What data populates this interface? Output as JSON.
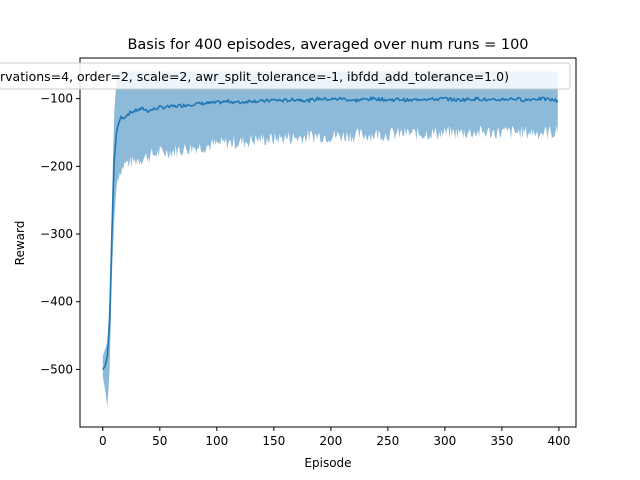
{
  "chart_data": {
    "type": "line",
    "title": "Basis for 400 episodes, averaged over num runs = 100",
    "xlabel": "Episode",
    "ylabel": "Reward",
    "xlim": [
      -20,
      415
    ],
    "ylim": [
      -585,
      -40
    ],
    "xticks": [
      0,
      50,
      100,
      150,
      200,
      250,
      300,
      350,
      400
    ],
    "yticks": [
      -500,
      -400,
      -300,
      -200,
      -100
    ],
    "grid": false,
    "legend": {
      "placement": "top",
      "text": "rvations=4, order=2, scale=2, awr_split_tolerance=-1, ibfdd_add_tolerance=1.0)"
    },
    "colors": {
      "line": "#1f77b4",
      "band": "#8ebad9"
    },
    "series": [
      {
        "x": [
          0,
          2,
          4,
          6,
          8,
          10,
          12,
          14,
          16,
          18,
          20,
          25,
          30,
          35,
          40,
          50,
          60,
          70,
          80,
          90,
          100,
          110,
          120,
          130,
          140,
          150,
          160,
          170,
          180,
          190,
          200,
          210,
          220,
          230,
          240,
          250,
          260,
          270,
          280,
          290,
          300,
          310,
          320,
          330,
          340,
          350,
          360,
          370,
          380,
          390,
          399
        ],
        "mean": [
          -500,
          -495,
          -480,
          -430,
          -300,
          -190,
          -150,
          -135,
          -128,
          -130,
          -125,
          -120,
          -117,
          -115,
          -118,
          -113,
          -112,
          -110,
          -108,
          -107,
          -106,
          -104,
          -106,
          -103,
          -104,
          -102,
          -103,
          -101,
          -103,
          -100,
          -101,
          -100,
          -103,
          -101,
          -100,
          -102,
          -101,
          -103,
          -100,
          -101,
          -100,
          -102,
          -101,
          -100,
          -103,
          -101,
          -100,
          -102,
          -100,
          -101,
          -103
        ],
        "upper": [
          -480,
          -470,
          -460,
          -390,
          -250,
          -120,
          -75,
          -60,
          -60,
          -60,
          -60,
          -60,
          -60,
          -60,
          -60,
          -60,
          -60,
          -60,
          -60,
          -60,
          -60,
          -60,
          -60,
          -60,
          -60,
          -60,
          -60,
          -60,
          -60,
          -60,
          -60,
          -60,
          -60,
          -60,
          -60,
          -60,
          -60,
          -60,
          -60,
          -60,
          -60,
          -60,
          -60,
          -60,
          -60,
          -60,
          -60,
          -60,
          -60,
          -60,
          -60
        ],
        "lower": [
          -510,
          -530,
          -555,
          -500,
          -360,
          -280,
          -230,
          -210,
          -205,
          -200,
          -195,
          -195,
          -190,
          -188,
          -185,
          -180,
          -178,
          -175,
          -172,
          -170,
          -168,
          -165,
          -165,
          -162,
          -160,
          -160,
          -158,
          -158,
          -156,
          -155,
          -155,
          -155,
          -155,
          -154,
          -153,
          -153,
          -152,
          -152,
          -152,
          -151,
          -151,
          -151,
          -150,
          -150,
          -150,
          -150,
          -150,
          -150,
          -150,
          -150,
          -150
        ]
      }
    ]
  }
}
